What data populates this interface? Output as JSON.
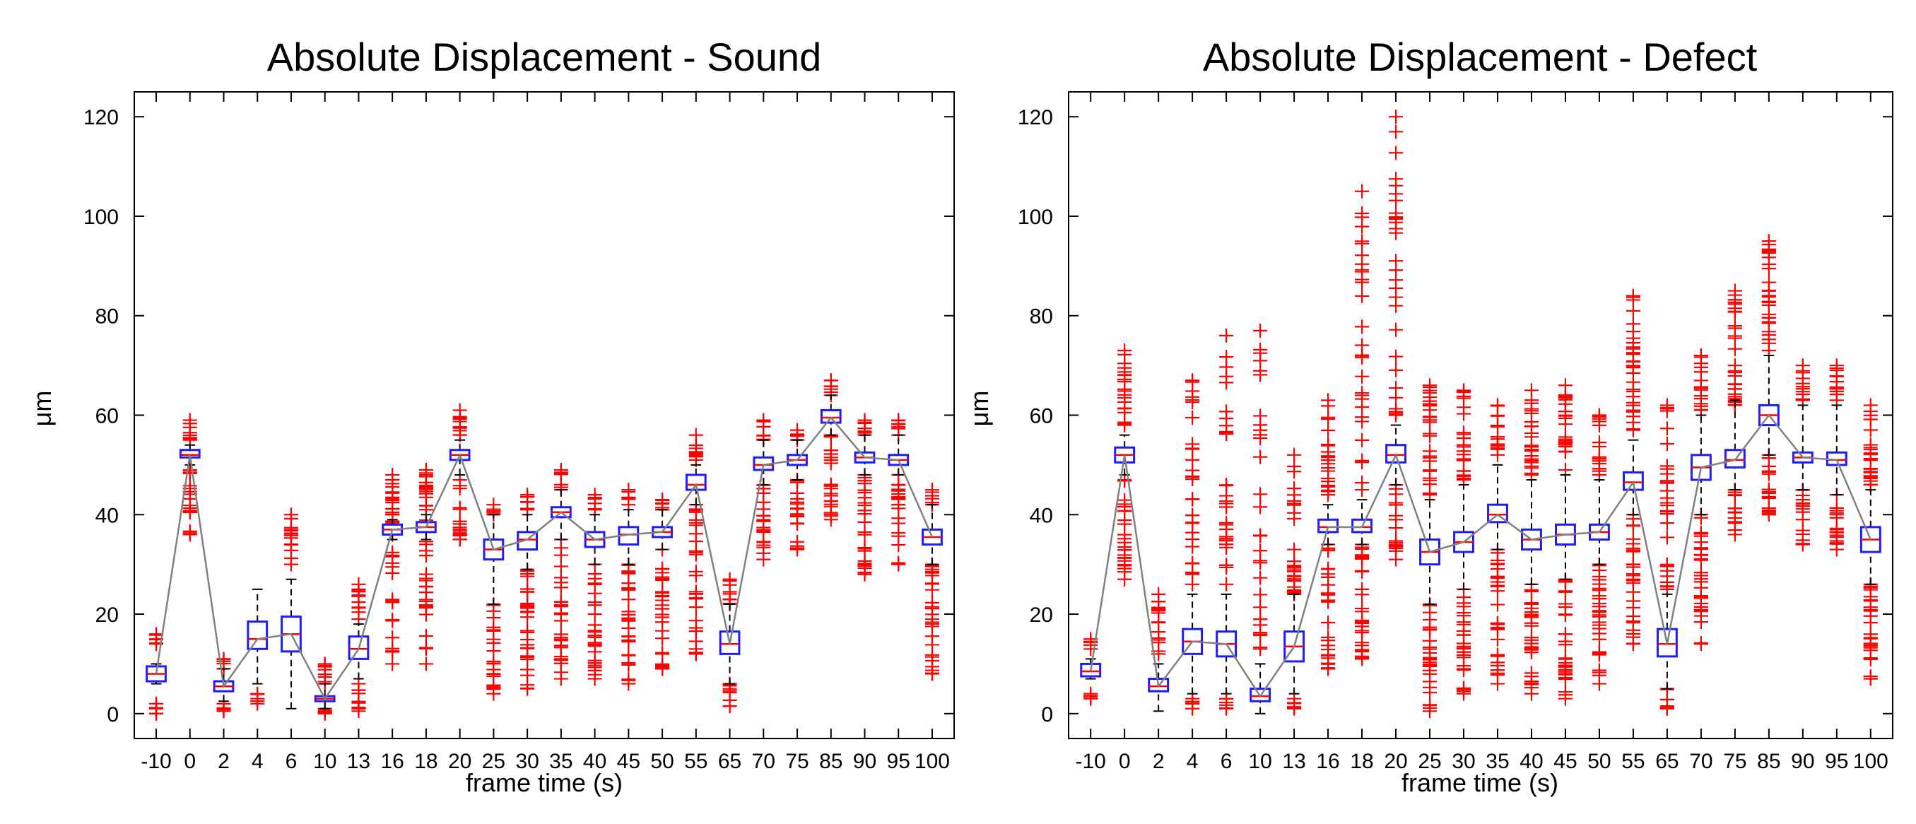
{
  "chart_data": [
    {
      "type": "box",
      "title": "Absolute Displacement - Sound",
      "xlabel": "frame time (s)",
      "ylabel": "μm",
      "ylim": [
        -5,
        125
      ],
      "yticks": [
        0,
        20,
        40,
        60,
        80,
        100,
        120
      ],
      "categories": [
        "-10",
        "0",
        "2",
        "4",
        "6",
        "10",
        "13",
        "16",
        "18",
        "20",
        "25",
        "30",
        "35",
        "40",
        "45",
        "50",
        "55",
        "65",
        "70",
        "75",
        "85",
        "90",
        "95",
        "100"
      ],
      "medians": [
        8,
        52,
        5.5,
        15,
        16,
        3,
        13,
        37,
        37.5,
        52,
        33,
        35,
        40.5,
        35,
        36,
        36.5,
        46,
        14,
        50,
        51,
        59.5,
        51.5,
        51,
        35.5
      ],
      "q1": [
        6.5,
        51.5,
        4.5,
        13,
        12.5,
        2.5,
        11,
        36,
        36.5,
        51,
        31,
        33,
        39.5,
        33.5,
        34,
        35.5,
        45,
        12,
        49,
        50,
        58.5,
        50.5,
        50,
        34
      ],
      "q3": [
        9.5,
        53,
        6.5,
        18.5,
        19.5,
        3.5,
        15.5,
        38,
        38.5,
        53,
        35,
        36.5,
        41.5,
        36.5,
        37.5,
        37.5,
        48,
        16.5,
        51.5,
        52,
        61,
        52.5,
        52,
        37
      ],
      "whisker_low": [
        6,
        50,
        2.5,
        6,
        1,
        1,
        7,
        35,
        35,
        48,
        22,
        29,
        35,
        30,
        30,
        33,
        42,
        6,
        46,
        47,
        56,
        48,
        48,
        30
      ],
      "whisker_high": [
        10,
        54,
        9,
        25,
        27,
        6,
        18,
        39,
        40,
        55,
        40,
        40,
        45,
        40,
        41,
        41,
        50,
        22,
        55,
        55,
        64,
        56,
        56,
        42
      ],
      "outlier_low_range": [
        [
          0,
          2
        ],
        [
          36,
          49
        ],
        [
          0.5,
          2
        ],
        [
          2,
          4
        ],
        [
          null,
          null
        ],
        [
          0,
          1
        ],
        [
          0.5,
          6
        ],
        [
          10,
          48
        ],
        [
          10,
          49
        ],
        [
          35,
          47
        ],
        [
          4,
          22
        ],
        [
          5,
          29
        ],
        [
          7,
          35
        ],
        [
          7,
          30
        ],
        [
          6,
          30
        ],
        [
          9,
          33
        ],
        [
          12,
          42
        ],
        [
          1.5,
          6
        ],
        [
          31,
          46
        ],
        [
          33,
          47
        ],
        [
          39,
          56
        ],
        [
          28,
          48
        ],
        [
          30,
          48
        ],
        [
          8,
          30
        ]
      ],
      "outlier_high_range": [
        [
          14,
          16
        ],
        [
          55,
          59
        ],
        [
          9,
          11
        ],
        [
          null,
          null
        ],
        [
          30,
          40
        ],
        [
          6,
          10
        ],
        [
          19,
          26
        ],
        [
          40,
          47
        ],
        [
          41,
          49
        ],
        [
          56,
          61
        ],
        [
          40,
          42
        ],
        [
          41,
          44
        ],
        [
          45,
          49
        ],
        [
          41,
          44
        ],
        [
          42,
          45
        ],
        [
          41,
          43
        ],
        [
          51,
          56
        ],
        [
          22,
          27
        ],
        [
          55,
          59
        ],
        [
          55,
          57
        ],
        [
          64,
          67
        ],
        [
          56,
          59
        ],
        [
          56,
          59
        ],
        [
          42,
          45
        ]
      ],
      "line_color": "#808080",
      "box_color": "#1c1cff",
      "outlier_color": "#ff0000"
    },
    {
      "type": "box",
      "title": "Absolute Displacement - Defect",
      "xlabel": "frame time (s)",
      "ylabel": "μm",
      "ylim": [
        -5,
        125
      ],
      "yticks": [
        0,
        20,
        40,
        60,
        80,
        100,
        120
      ],
      "categories": [
        "-10",
        "0",
        "2",
        "4",
        "6",
        "10",
        "13",
        "16",
        "18",
        "20",
        "25",
        "30",
        "35",
        "40",
        "45",
        "50",
        "55",
        "65",
        "70",
        "75",
        "85",
        "90",
        "95",
        "100"
      ],
      "medians": [
        8.5,
        52,
        5.5,
        14.5,
        14,
        3.5,
        13.5,
        37.5,
        37.5,
        52,
        32.5,
        34.5,
        40,
        35,
        36,
        36.5,
        46.5,
        14,
        49.5,
        51,
        60,
        51.5,
        51,
        35
      ],
      "q1": [
        7.5,
        50.5,
        4.5,
        12,
        11.5,
        2.5,
        10.5,
        36.5,
        36.5,
        50.5,
        30,
        32.5,
        38.5,
        33,
        34,
        35,
        45,
        11.5,
        47,
        49.5,
        58,
        50.5,
        50,
        32.5
      ],
      "q3": [
        10,
        53.5,
        7,
        17,
        16.5,
        5,
        16.5,
        39,
        39,
        54,
        35,
        36.5,
        42,
        37,
        38,
        38,
        48.5,
        17,
        52,
        53,
        62,
        52.5,
        52.5,
        37.5
      ],
      "whisker_low": [
        7,
        48,
        0.5,
        4,
        4,
        0,
        4,
        34,
        34,
        46,
        22,
        25,
        33,
        26,
        27,
        30,
        40,
        5,
        40,
        45,
        52,
        45,
        44,
        26
      ],
      "whisker_high": [
        11,
        56,
        10,
        24,
        24,
        10,
        24,
        42,
        43,
        58,
        43,
        46,
        50,
        47,
        48,
        47,
        55,
        24,
        60,
        63,
        72,
        62,
        62,
        45
      ],
      "outlier_low_range": [
        [
          3,
          4
        ],
        [
          27,
          47
        ],
        [
          null,
          null
        ],
        [
          1,
          3
        ],
        [
          1,
          3
        ],
        [
          null,
          null
        ],
        [
          1,
          3
        ],
        [
          9,
          34
        ],
        [
          11,
          34
        ],
        [
          31,
          46
        ],
        [
          0.5,
          22
        ],
        [
          4,
          25
        ],
        [
          6,
          33
        ],
        [
          4,
          26
        ],
        [
          3,
          27
        ],
        [
          6,
          30
        ],
        [
          14,
          40
        ],
        [
          1,
          5
        ],
        [
          14,
          40
        ],
        [
          36,
          45
        ],
        [
          40,
          52
        ],
        [
          34,
          45
        ],
        [
          33,
          44
        ],
        [
          7,
          26
        ]
      ],
      "outlier_high_range": [
        [
          13,
          15
        ],
        [
          58,
          73
        ],
        [
          12,
          24
        ],
        [
          26,
          67
        ],
        [
          26,
          76
        ],
        [
          13,
          77
        ],
        [
          24,
          52
        ],
        [
          44,
          63
        ],
        [
          45,
          105
        ],
        [
          60,
          120
        ],
        [
          44,
          66
        ],
        [
          47,
          65
        ],
        [
          52,
          62
        ],
        [
          48,
          65
        ],
        [
          49,
          66
        ],
        [
          48,
          60
        ],
        [
          57,
          84
        ],
        [
          25,
          62
        ],
        [
          61,
          72
        ],
        [
          62,
          85
        ],
        [
          73,
          95
        ],
        [
          63,
          70
        ],
        [
          63,
          70
        ],
        [
          46,
          62
        ]
      ],
      "line_color": "#808080",
      "box_color": "#1c1cff",
      "outlier_color": "#ff0000"
    }
  ]
}
